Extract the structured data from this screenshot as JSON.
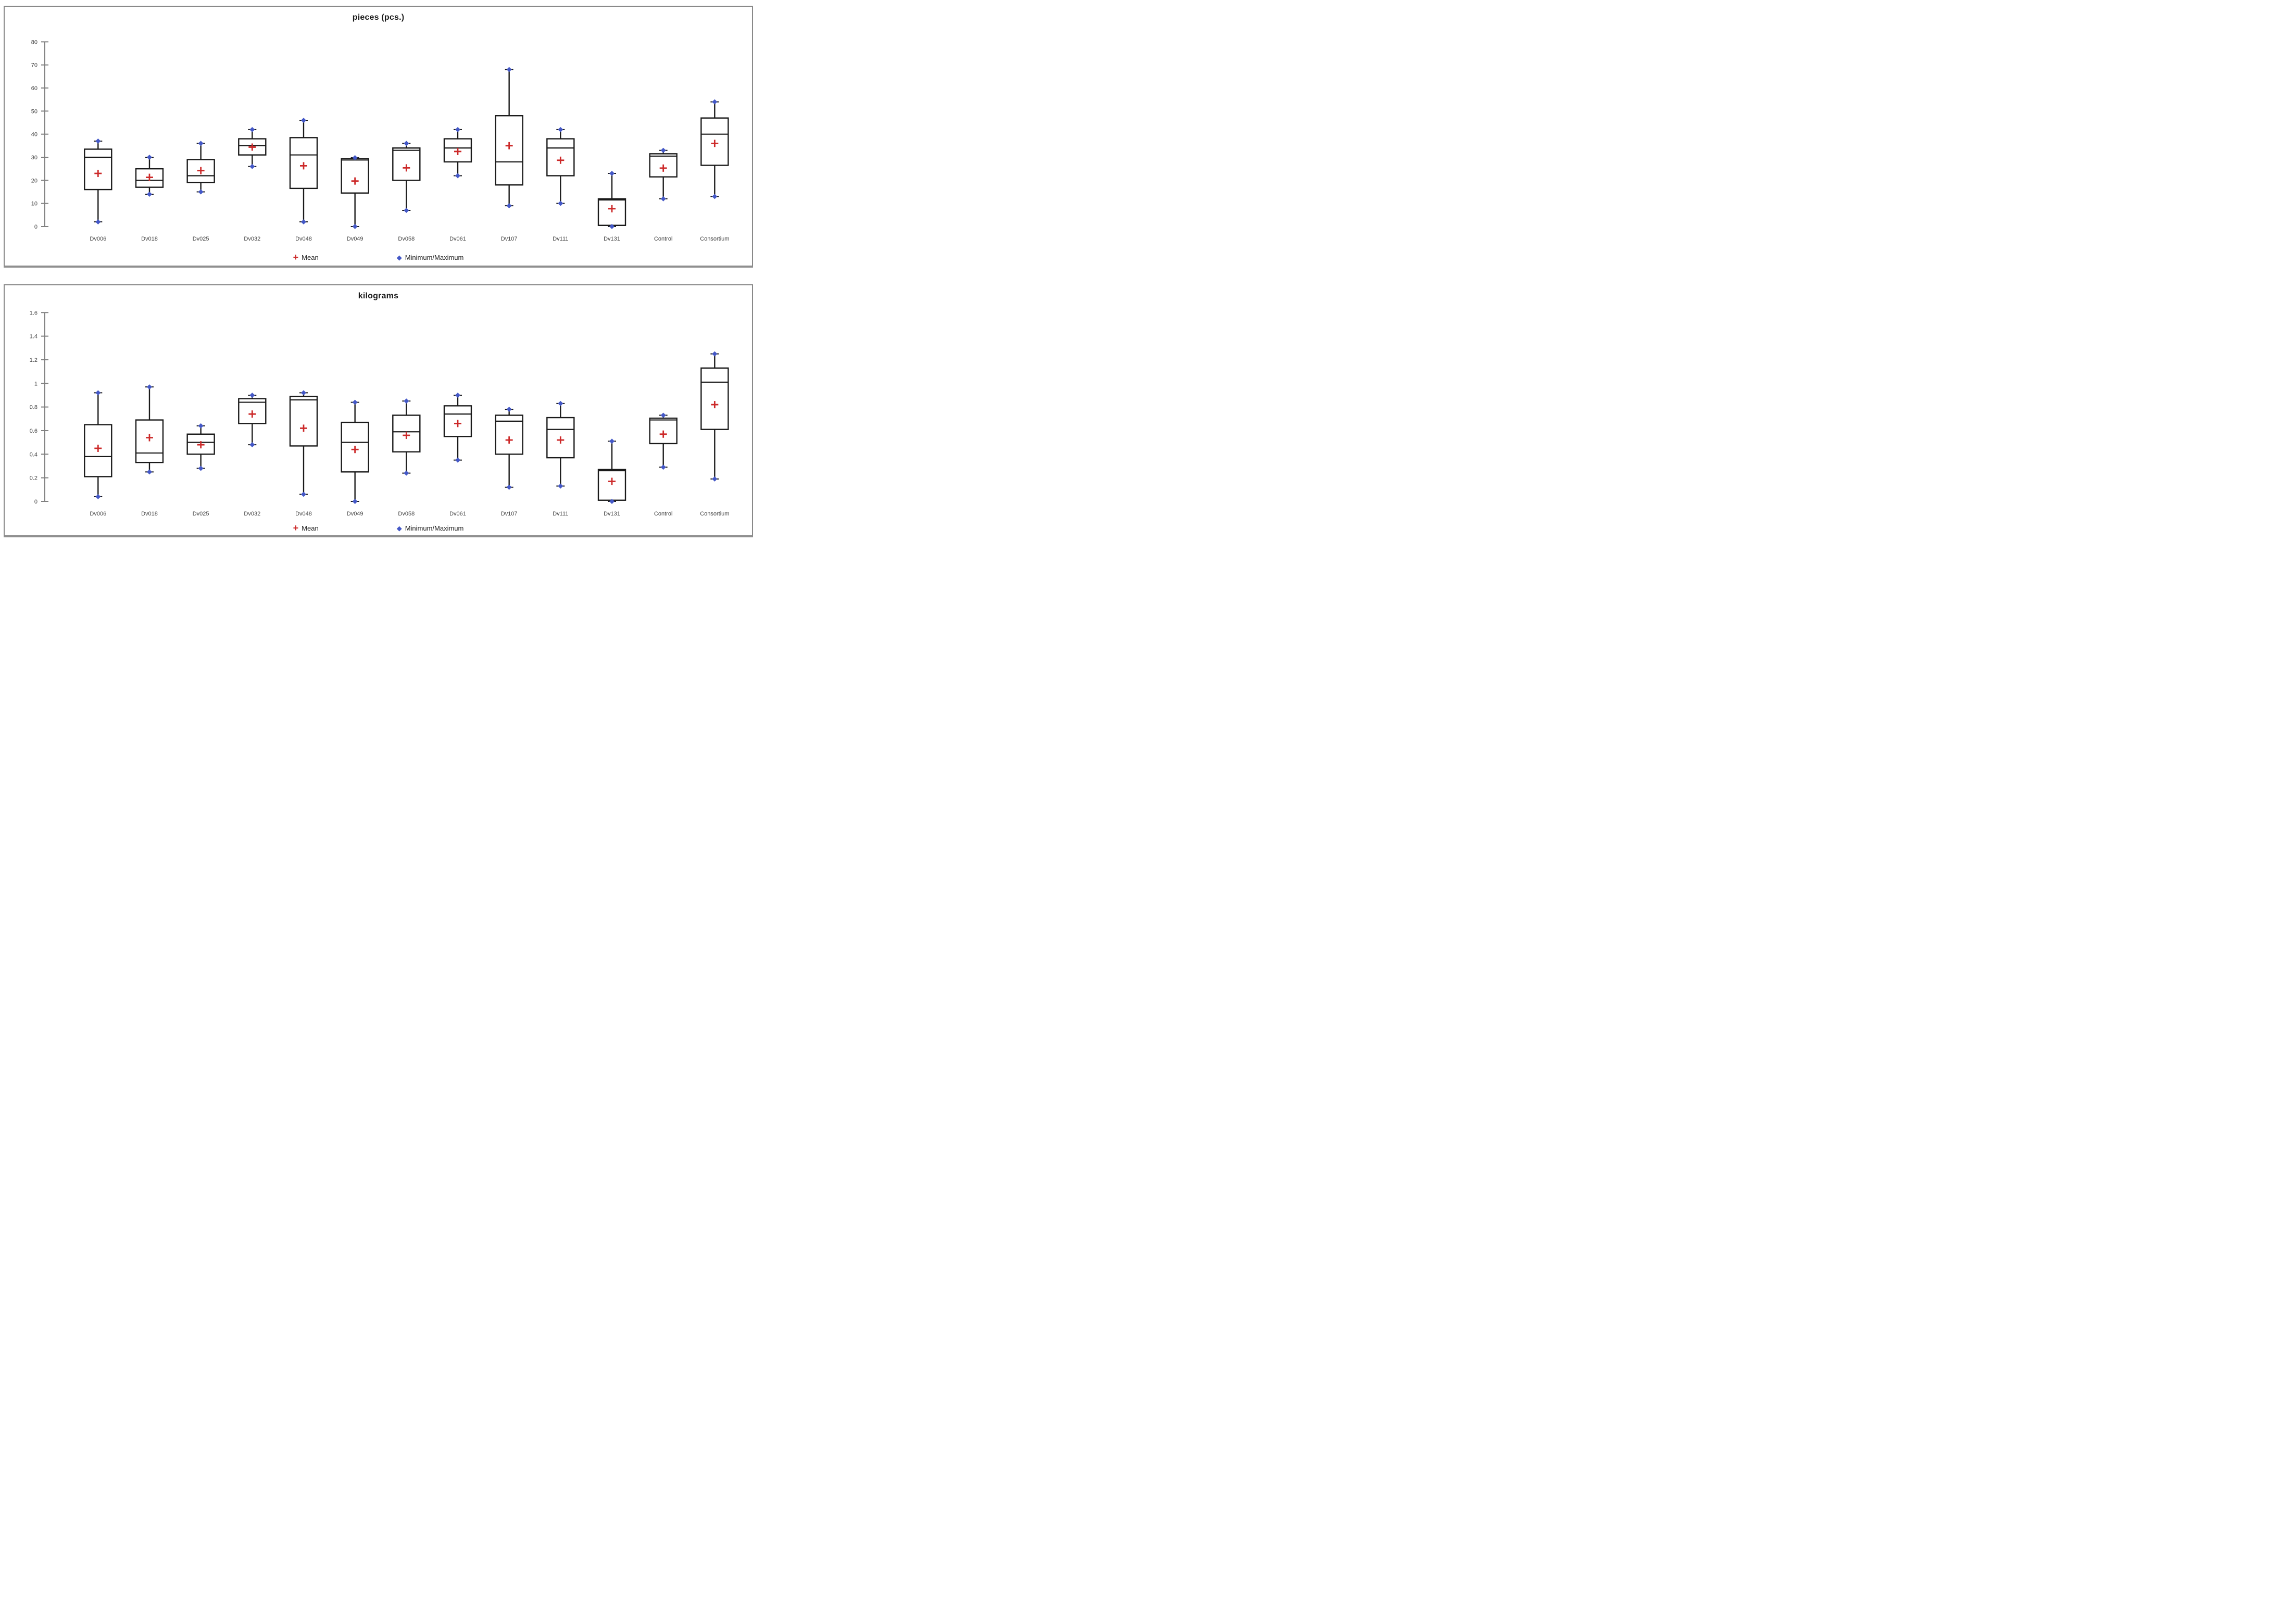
{
  "legend": {
    "mean_label": "Mean",
    "minmax_label": "Minimum/Maximum"
  },
  "colors": {
    "mean_marker": "#CC2929",
    "minmax_marker": "#4458C7",
    "box_stroke": "#1a1a1a",
    "whisker": "#1a1a1a",
    "axis": "#808080",
    "tick_label": "#404040",
    "category_label": "#404040",
    "title": "#1a1a1a"
  },
  "chart_data": [
    {
      "type": "box",
      "title": "pieces (pcs.)",
      "ylabel": "",
      "ylim": [
        0,
        80
      ],
      "yticks": [
        "0",
        "10",
        "20",
        "30",
        "40",
        "50",
        "60",
        "70",
        "80"
      ],
      "ytick_values": [
        0,
        10,
        20,
        30,
        40,
        50,
        60,
        70,
        80
      ],
      "grid": false,
      "legend_position": "bottom",
      "categories": [
        "Dv006",
        "Dv018",
        "Dv025",
        "Dv032",
        "Dv048",
        "Dv049",
        "Dv058",
        "Dv061",
        "Dv107",
        "Dv111",
        "Dv131",
        "Control",
        "Consortium"
      ],
      "stats": [
        {
          "category": "Dv006",
          "min": 2,
          "q1": 16,
          "median": 30,
          "q3": 33.5,
          "max": 37,
          "mean": 23
        },
        {
          "category": "Dv018",
          "min": 14,
          "q1": 17,
          "median": 20,
          "q3": 25,
          "max": 30,
          "mean": 21.3
        },
        {
          "category": "Dv025",
          "min": 15,
          "q1": 19,
          "median": 22,
          "q3": 29,
          "max": 36,
          "mean": 24.2
        },
        {
          "category": "Dv032",
          "min": 26,
          "q1": 31,
          "median": 35,
          "q3": 38,
          "max": 42,
          "mean": 34.4
        },
        {
          "category": "Dv048",
          "min": 2,
          "q1": 16.5,
          "median": 31,
          "q3": 38.5,
          "max": 46,
          "mean": 26.3
        },
        {
          "category": "Dv049",
          "min": 0,
          "q1": 14.5,
          "median": 28.8,
          "q3": 29.4,
          "max": 29.8,
          "mean": 19.7
        },
        {
          "category": "Dv058",
          "min": 7,
          "q1": 20,
          "median": 33,
          "q3": 34,
          "max": 36,
          "mean": 25.4
        },
        {
          "category": "Dv061",
          "min": 22,
          "q1": 28,
          "median": 34,
          "q3": 38,
          "max": 42,
          "mean": 32.5
        },
        {
          "category": "Dv107",
          "min": 9,
          "q1": 18,
          "median": 28,
          "q3": 48,
          "max": 68,
          "mean": 35
        },
        {
          "category": "Dv111",
          "min": 10,
          "q1": 22,
          "median": 34,
          "q3": 38,
          "max": 42,
          "mean": 28.7
        },
        {
          "category": "Dv131",
          "min": 0,
          "q1": 0.5,
          "median": 11.5,
          "q3": 12,
          "max": 23,
          "mean": 7.7
        },
        {
          "category": "Control",
          "min": 12,
          "q1": 21.5,
          "median": 30.5,
          "q3": 31.5,
          "max": 33,
          "mean": 25.3
        },
        {
          "category": "Consortium",
          "min": 13,
          "q1": 26.5,
          "median": 40,
          "q3": 47,
          "max": 54,
          "mean": 36
        }
      ]
    },
    {
      "type": "box",
      "title": "kilograms",
      "ylabel": "",
      "ylim": [
        0,
        1.6
      ],
      "yticks": [
        "0",
        "0.2",
        "0.4",
        "0.6",
        "0.8",
        "1",
        "1.2",
        "1.4",
        "1.6"
      ],
      "ytick_values": [
        0,
        0.2,
        0.4,
        0.6,
        0.8,
        1,
        1.2,
        1.4,
        1.6
      ],
      "grid": false,
      "legend_position": "bottom",
      "categories": [
        "Dv006",
        "Dv018",
        "Dv025",
        "Dv032",
        "Dv048",
        "Dv049",
        "Dv058",
        "Dv061",
        "Dv107",
        "Dv111",
        "Dv131",
        "Control",
        "Consortium"
      ],
      "stats": [
        {
          "category": "Dv006",
          "min": 0.04,
          "q1": 0.21,
          "median": 0.38,
          "q3": 0.65,
          "max": 0.92,
          "mean": 0.45
        },
        {
          "category": "Dv018",
          "min": 0.25,
          "q1": 0.33,
          "median": 0.41,
          "q3": 0.69,
          "max": 0.97,
          "mean": 0.54
        },
        {
          "category": "Dv025",
          "min": 0.28,
          "q1": 0.4,
          "median": 0.5,
          "q3": 0.57,
          "max": 0.64,
          "mean": 0.48
        },
        {
          "category": "Dv032",
          "min": 0.48,
          "q1": 0.66,
          "median": 0.84,
          "q3": 0.87,
          "max": 0.9,
          "mean": 0.74
        },
        {
          "category": "Dv048",
          "min": 0.06,
          "q1": 0.47,
          "median": 0.86,
          "q3": 0.89,
          "max": 0.92,
          "mean": 0.62
        },
        {
          "category": "Dv049",
          "min": 0.0,
          "q1": 0.25,
          "median": 0.5,
          "q3": 0.67,
          "max": 0.84,
          "mean": 0.44
        },
        {
          "category": "Dv058",
          "min": 0.24,
          "q1": 0.42,
          "median": 0.59,
          "q3": 0.73,
          "max": 0.85,
          "mean": 0.56
        },
        {
          "category": "Dv061",
          "min": 0.35,
          "q1": 0.55,
          "median": 0.74,
          "q3": 0.81,
          "max": 0.9,
          "mean": 0.66
        },
        {
          "category": "Dv107",
          "min": 0.12,
          "q1": 0.4,
          "median": 0.68,
          "q3": 0.73,
          "max": 0.78,
          "mean": 0.52
        },
        {
          "category": "Dv111",
          "min": 0.13,
          "q1": 0.37,
          "median": 0.61,
          "q3": 0.71,
          "max": 0.83,
          "mean": 0.52
        },
        {
          "category": "Dv131",
          "min": 0.0,
          "q1": 0.01,
          "median": 0.26,
          "q3": 0.27,
          "max": 0.51,
          "mean": 0.17
        },
        {
          "category": "Control",
          "min": 0.29,
          "q1": 0.49,
          "median": 0.69,
          "q3": 0.705,
          "max": 0.73,
          "mean": 0.57
        },
        {
          "category": "Consortium",
          "min": 0.19,
          "q1": 0.61,
          "median": 1.01,
          "q3": 1.13,
          "max": 1.25,
          "mean": 0.82
        }
      ]
    }
  ]
}
